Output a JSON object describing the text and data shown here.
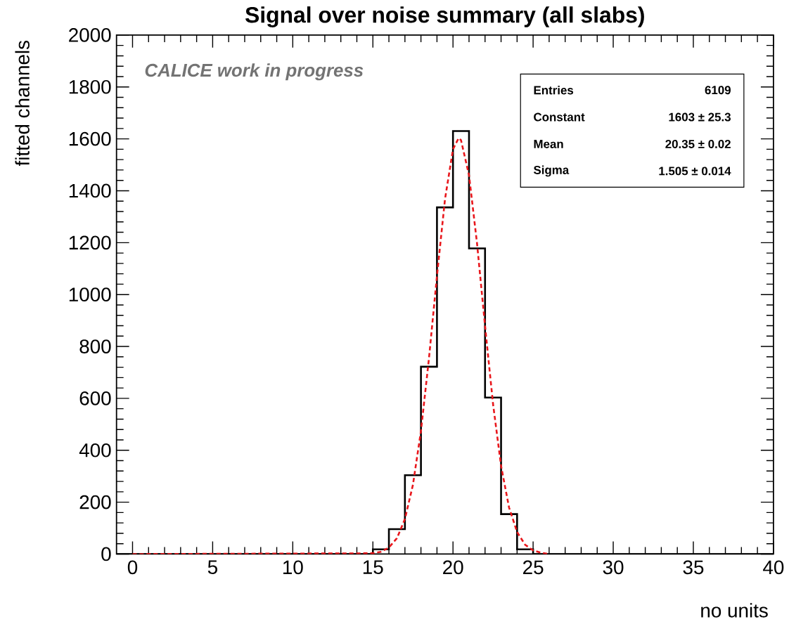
{
  "chart_data": {
    "type": "histogram",
    "title": "Signal over noise summary (all slabs)",
    "xlabel": "no units",
    "ylabel": "fitted channels",
    "annotations": [
      "CALICE work in progress",
      "Entries",
      "6109",
      "Constant",
      "1603 ± 25.3",
      "Mean",
      "20.35 ± 0.02",
      "Sigma",
      "1.505 ± 0.014"
    ],
    "series": [
      {
        "color": "#000000",
        "bins": [
          -1,
          0,
          1,
          2,
          3,
          4,
          5,
          6,
          7,
          8,
          9,
          10,
          11,
          12,
          13,
          14,
          15,
          16,
          17,
          18,
          19,
          20,
          21,
          22,
          23,
          24,
          25,
          26,
          27,
          28,
          29,
          30,
          31,
          32,
          33,
          34,
          35,
          36,
          37,
          38,
          39,
          40
        ],
        "values": [
          0,
          0,
          0,
          0,
          0,
          0,
          0,
          0,
          0,
          0,
          0,
          0,
          0,
          0,
          0,
          0,
          18,
          96,
          304,
          722,
          1336,
          1630,
          1178,
          603,
          154,
          18,
          0,
          0,
          0,
          0,
          0,
          0,
          0,
          0,
          0,
          0,
          0,
          0,
          0,
          0,
          0
        ]
      },
      {
        "type": "line",
        "color": "#e8161b",
        "line_style": "dashed",
        "x": [
          0,
          15,
          15.5,
          16,
          16.5,
          17,
          17.5,
          18,
          18.5,
          19,
          19.5,
          20,
          20.35,
          20.5,
          21,
          21.5,
          22,
          22.5,
          23,
          23.5,
          24,
          24.5,
          25,
          25.5,
          26
        ],
        "values": [
          0,
          3,
          9,
          25,
          61,
          135,
          267,
          474,
          754,
          1072,
          1367,
          1560,
          1603,
          1595,
          1460,
          1197,
          879,
          578,
          340,
          179,
          85,
          36,
          14,
          5,
          0
        ]
      }
    ],
    "xlim": [
      -1,
      40
    ],
    "xticks": [
      0,
      5,
      10,
      15,
      20,
      25,
      30,
      35,
      40
    ],
    "ylim": [
      0,
      2000
    ],
    "yticks": [
      0,
      200,
      400,
      600,
      800,
      1000,
      1200,
      1400,
      1600,
      1800,
      2000
    ],
    "grid": false
  }
}
